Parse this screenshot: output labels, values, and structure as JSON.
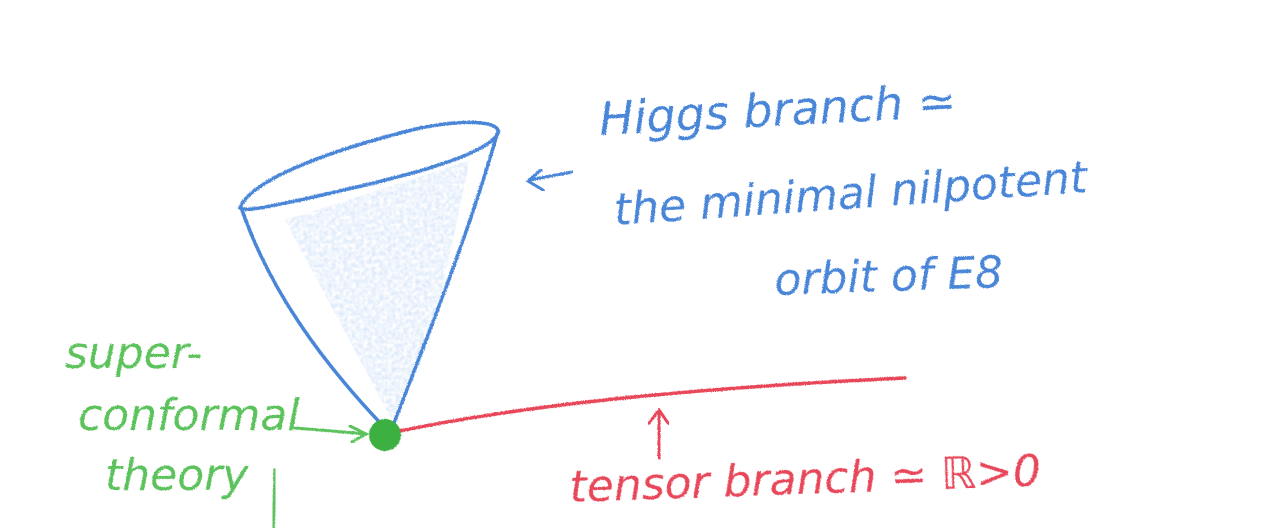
{
  "higgs_label": {
    "line1": "Higgs branch ≃",
    "line2": "the minimal nilpotent",
    "line3": "orbit of  E8"
  },
  "scft_label": {
    "line1": "super-",
    "line2": "conformal",
    "line3": "theory"
  },
  "tensor_label": {
    "text": "tensor branch ≃ ℝ>0"
  },
  "colors": {
    "higgs": "#4a86d8",
    "higgs_fill": "#a9c6f0",
    "scft": "#5bc25b",
    "scft_dot": "#3cb043",
    "tensor": "#e8475a"
  }
}
